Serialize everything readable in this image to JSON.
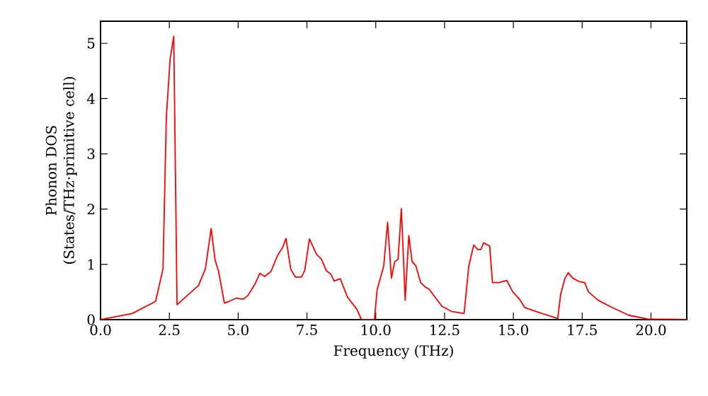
{
  "chart_data": {
    "type": "line",
    "xlabel": "Frequency (THz)",
    "ylabel": "Phonon DOS (States/THz·primitive cell)",
    "xlim": [
      0,
      21.3
    ],
    "ylim": [
      0,
      5.4
    ],
    "xticks": [
      {
        "value": 0,
        "label": "0.0"
      },
      2.5,
      {
        "value": 5,
        "label": "5.0"
      },
      7.5,
      {
        "value": 10,
        "label": "10.0"
      },
      12.5,
      {
        "value": 15,
        "label": "15.0"
      },
      17.5,
      {
        "value": 20,
        "label": "20.0"
      }
    ],
    "yticks": [
      0,
      1,
      2,
      3,
      4,
      5
    ],
    "series": [
      {
        "color": "#ff0000",
        "x": [
          0,
          1.15,
          2.0,
          2.27,
          2.39,
          2.53,
          2.66,
          2.78,
          3.56,
          3.81,
          4.02,
          4.16,
          4.29,
          4.5,
          4.67,
          4.93,
          5.19,
          5.36,
          5.62,
          5.79,
          5.96,
          6.19,
          6.44,
          6.61,
          6.74,
          6.91,
          7.08,
          7.3,
          7.42,
          7.59,
          7.85,
          8.02,
          8.2,
          8.37,
          8.49,
          8.71,
          8.97,
          9.31,
          9.48,
          9.95,
          10.05,
          10.29,
          10.43,
          10.57,
          10.69,
          10.81,
          10.93,
          11.07,
          11.2,
          11.32,
          11.46,
          11.63,
          11.8,
          11.94,
          12.15,
          12.41,
          12.75,
          13.21,
          13.38,
          13.56,
          13.7,
          13.82,
          13.92,
          14.14,
          14.24,
          14.47,
          14.76,
          14.98,
          15.21,
          15.41,
          15.93,
          16.61,
          16.72,
          16.87,
          16.99,
          17.16,
          17.38,
          17.59,
          17.73,
          18.08,
          18.59,
          19.19,
          19.88,
          21.3
        ],
        "values": [
          0,
          0.11,
          0.33,
          0.92,
          3.66,
          4.72,
          5.13,
          0.27,
          0.62,
          0.92,
          1.65,
          1.08,
          0.87,
          0.3,
          0.33,
          0.39,
          0.37,
          0.44,
          0.65,
          0.84,
          0.78,
          0.87,
          1.17,
          1.3,
          1.47,
          0.91,
          0.77,
          0.77,
          0.89,
          1.46,
          1.18,
          1.1,
          0.89,
          0.82,
          0.7,
          0.74,
          0.41,
          0.19,
          0,
          0,
          0.54,
          0.97,
          1.76,
          0.75,
          1.05,
          1.09,
          2.01,
          0.35,
          1.52,
          1.05,
          0.97,
          0.67,
          0.59,
          0.55,
          0.41,
          0.24,
          0.15,
          0.11,
          0.97,
          1.35,
          1.27,
          1.27,
          1.39,
          1.33,
          0.67,
          0.67,
          0.71,
          0.5,
          0.38,
          0.22,
          0.13,
          0.02,
          0.46,
          0.74,
          0.85,
          0.75,
          0.69,
          0.67,
          0.5,
          0.35,
          0.22,
          0.08,
          0.01,
          0
        ]
      }
    ]
  }
}
